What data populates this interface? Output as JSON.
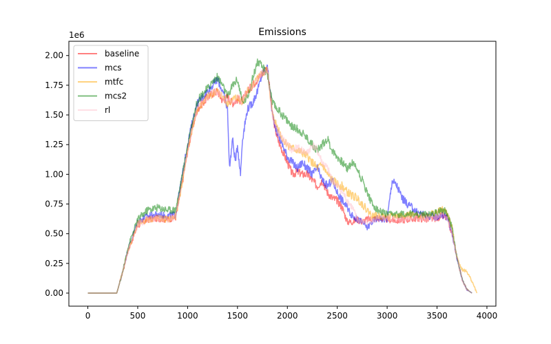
{
  "chart_data": {
    "type": "line",
    "title": "Emissions",
    "xlabel": "",
    "ylabel": "",
    "y_offset_label": "1e6",
    "xlim": [
      -190,
      4090
    ],
    "ylim": [
      -0.11,
      2.12
    ],
    "y_scale_factor": 1000000,
    "xticks": [
      0,
      500,
      1000,
      1500,
      2000,
      2500,
      3000,
      3500,
      4000
    ],
    "xtick_labels": [
      "0",
      "500",
      "1000",
      "1500",
      "2000",
      "2500",
      "3000",
      "3500",
      "4000"
    ],
    "yticks": [
      0.0,
      0.25,
      0.5,
      0.75,
      1.0,
      1.25,
      1.5,
      1.75,
      2.0
    ],
    "ytick_labels": [
      "0.00",
      "0.25",
      "0.50",
      "0.75",
      "1.00",
      "1.25",
      "1.50",
      "1.75",
      "2.00"
    ],
    "grid": false,
    "legend_position": "top-left",
    "series": [
      {
        "name": "baseline",
        "color": "#ff0000",
        "opacity": 0.5,
        "x": [
          0,
          290,
          350,
          400,
          500,
          600,
          700,
          800,
          880,
          950,
          1000,
          1050,
          1100,
          1150,
          1200,
          1250,
          1300,
          1350,
          1400,
          1450,
          1500,
          1550,
          1600,
          1650,
          1700,
          1750,
          1800,
          1850,
          1900,
          1950,
          2000,
          2050,
          2100,
          2150,
          2200,
          2250,
          2300,
          2350,
          2400,
          2450,
          2500,
          2550,
          2600,
          2650,
          2700,
          2750,
          2800,
          2900,
          3000,
          3100,
          3200,
          3300,
          3400,
          3500,
          3550,
          3600,
          3650,
          3700,
          3750,
          3800,
          3850
        ],
        "values": [
          0,
          0,
          0.18,
          0.35,
          0.57,
          0.62,
          0.63,
          0.62,
          0.64,
          0.95,
          1.2,
          1.4,
          1.55,
          1.6,
          1.65,
          1.68,
          1.7,
          1.62,
          1.65,
          1.6,
          1.63,
          1.62,
          1.7,
          1.75,
          1.8,
          1.85,
          1.9,
          1.5,
          1.3,
          1.2,
          1.1,
          1.0,
          1.02,
          1.0,
          1.0,
          0.95,
          0.9,
          0.95,
          0.85,
          0.8,
          0.78,
          0.72,
          0.6,
          0.6,
          0.62,
          0.6,
          0.62,
          0.63,
          0.62,
          0.61,
          0.62,
          0.63,
          0.62,
          0.63,
          0.65,
          0.63,
          0.5,
          0.3,
          0.12,
          0.03,
          0
        ]
      },
      {
        "name": "mcs",
        "color": "#0000ff",
        "opacity": 0.5,
        "x": [
          0,
          290,
          350,
          400,
          500,
          600,
          700,
          800,
          880,
          950,
          1000,
          1050,
          1100,
          1150,
          1200,
          1250,
          1300,
          1350,
          1400,
          1420,
          1450,
          1480,
          1500,
          1530,
          1550,
          1600,
          1650,
          1700,
          1750,
          1800,
          1850,
          1900,
          1950,
          2000,
          2050,
          2100,
          2150,
          2200,
          2250,
          2300,
          2350,
          2400,
          2450,
          2500,
          2550,
          2600,
          2650,
          2700,
          2750,
          2800,
          2850,
          2900,
          3000,
          3050,
          3100,
          3150,
          3200,
          3250,
          3300,
          3400,
          3500,
          3550,
          3600,
          3650,
          3700,
          3750,
          3800,
          3850
        ],
        "values": [
          0,
          0,
          0.18,
          0.36,
          0.6,
          0.65,
          0.66,
          0.65,
          0.66,
          1.0,
          1.25,
          1.45,
          1.6,
          1.65,
          1.7,
          1.75,
          1.8,
          1.7,
          1.55,
          1.05,
          1.3,
          1.1,
          1.25,
          1.0,
          1.3,
          1.55,
          1.6,
          1.7,
          1.85,
          1.9,
          1.5,
          1.35,
          1.25,
          1.15,
          1.1,
          1.05,
          1.1,
          1.05,
          1.0,
          1.05,
          0.95,
          0.9,
          0.95,
          0.85,
          0.78,
          0.72,
          0.65,
          0.62,
          0.6,
          0.55,
          0.6,
          0.63,
          0.62,
          0.95,
          0.9,
          0.8,
          0.75,
          0.72,
          0.68,
          0.65,
          0.64,
          0.66,
          0.64,
          0.5,
          0.3,
          0.12,
          0.03,
          0
        ]
      },
      {
        "name": "mtfc",
        "color": "#ffa500",
        "opacity": 0.5,
        "x": [
          0,
          290,
          350,
          400,
          500,
          600,
          700,
          800,
          880,
          950,
          1000,
          1050,
          1100,
          1150,
          1200,
          1250,
          1300,
          1350,
          1400,
          1450,
          1500,
          1550,
          1600,
          1650,
          1700,
          1750,
          1800,
          1850,
          1900,
          1950,
          2000,
          2050,
          2100,
          2150,
          2200,
          2250,
          2300,
          2350,
          2400,
          2450,
          2500,
          2550,
          2600,
          2650,
          2700,
          2750,
          2800,
          2850,
          2900,
          3000,
          3100,
          3200,
          3300,
          3400,
          3500,
          3550,
          3600,
          3650,
          3700,
          3750,
          3800,
          3850,
          3900
        ],
        "values": [
          0,
          0,
          0.18,
          0.35,
          0.58,
          0.62,
          0.63,
          0.62,
          0.64,
          0.95,
          1.2,
          1.4,
          1.55,
          1.6,
          1.65,
          1.68,
          1.7,
          1.65,
          1.6,
          1.62,
          1.65,
          1.6,
          1.7,
          1.75,
          1.8,
          1.85,
          1.88,
          1.5,
          1.4,
          1.3,
          1.25,
          1.22,
          1.2,
          1.18,
          1.15,
          1.1,
          1.05,
          1.08,
          1.0,
          0.95,
          0.92,
          0.9,
          0.85,
          0.82,
          0.8,
          0.75,
          0.7,
          0.65,
          0.65,
          0.64,
          0.65,
          0.66,
          0.65,
          0.66,
          0.68,
          0.7,
          0.68,
          0.55,
          0.3,
          0.2,
          0.18,
          0.1,
          0
        ]
      },
      {
        "name": "mcs2",
        "color": "#008000",
        "opacity": 0.5,
        "x": [
          0,
          290,
          350,
          400,
          500,
          600,
          700,
          800,
          880,
          950,
          1000,
          1050,
          1100,
          1150,
          1200,
          1250,
          1300,
          1350,
          1400,
          1450,
          1500,
          1550,
          1600,
          1650,
          1700,
          1750,
          1800,
          1850,
          1900,
          1950,
          2000,
          2050,
          2100,
          2150,
          2200,
          2250,
          2300,
          2350,
          2400,
          2450,
          2500,
          2550,
          2600,
          2650,
          2700,
          2750,
          2800,
          2850,
          2900,
          3000,
          3100,
          3200,
          3300,
          3400,
          3500,
          3550,
          3600,
          3650,
          3700,
          3750,
          3800,
          3850
        ],
        "values": [
          0,
          0,
          0.18,
          0.38,
          0.62,
          0.7,
          0.72,
          0.7,
          0.7,
          1.0,
          1.25,
          1.45,
          1.62,
          1.68,
          1.72,
          1.78,
          1.82,
          1.75,
          1.65,
          1.75,
          1.8,
          1.6,
          1.65,
          1.8,
          1.95,
          1.9,
          1.85,
          1.6,
          1.55,
          1.5,
          1.45,
          1.4,
          1.38,
          1.35,
          1.3,
          1.25,
          1.2,
          1.25,
          1.3,
          1.2,
          1.15,
          1.1,
          1.05,
          1.1,
          1.05,
          0.95,
          0.85,
          0.75,
          0.7,
          0.66,
          0.66,
          0.67,
          0.66,
          0.66,
          0.68,
          0.7,
          0.68,
          0.55,
          0.3,
          0.12,
          0.03,
          0
        ]
      },
      {
        "name": "rl",
        "color": "#ffc0cb",
        "opacity": 0.5,
        "x": [
          0,
          290,
          350,
          400,
          500,
          600,
          700,
          800,
          880,
          950,
          1000,
          1050,
          1100,
          1150,
          1200,
          1250,
          1300,
          1350,
          1400,
          1450,
          1500,
          1550,
          1600,
          1650,
          1700,
          1750,
          1800,
          1850,
          1900,
          1950,
          2000,
          2050,
          2100,
          2150,
          2200,
          2250,
          2300,
          2350,
          2400,
          2450,
          2500,
          2550,
          2600,
          2650,
          2700,
          2750,
          2800,
          2900,
          3000,
          3100,
          3200,
          3300,
          3400,
          3500,
          3550,
          3600,
          3650,
          3700,
          3750,
          3800,
          3850
        ],
        "values": [
          0,
          0,
          0.18,
          0.35,
          0.57,
          0.62,
          0.63,
          0.62,
          0.64,
          0.95,
          1.2,
          1.4,
          1.55,
          1.6,
          1.65,
          1.68,
          1.7,
          1.65,
          1.62,
          1.6,
          1.65,
          1.62,
          1.7,
          1.75,
          1.8,
          1.85,
          1.88,
          1.5,
          1.35,
          1.3,
          1.25,
          1.2,
          1.22,
          1.2,
          1.18,
          1.25,
          1.2,
          1.1,
          1.05,
          0.95,
          0.9,
          0.85,
          0.78,
          0.72,
          0.62,
          0.6,
          0.6,
          0.62,
          0.63,
          0.62,
          0.63,
          0.63,
          0.62,
          0.64,
          0.65,
          0.63,
          0.5,
          0.3,
          0.12,
          0.03,
          0
        ]
      }
    ]
  }
}
